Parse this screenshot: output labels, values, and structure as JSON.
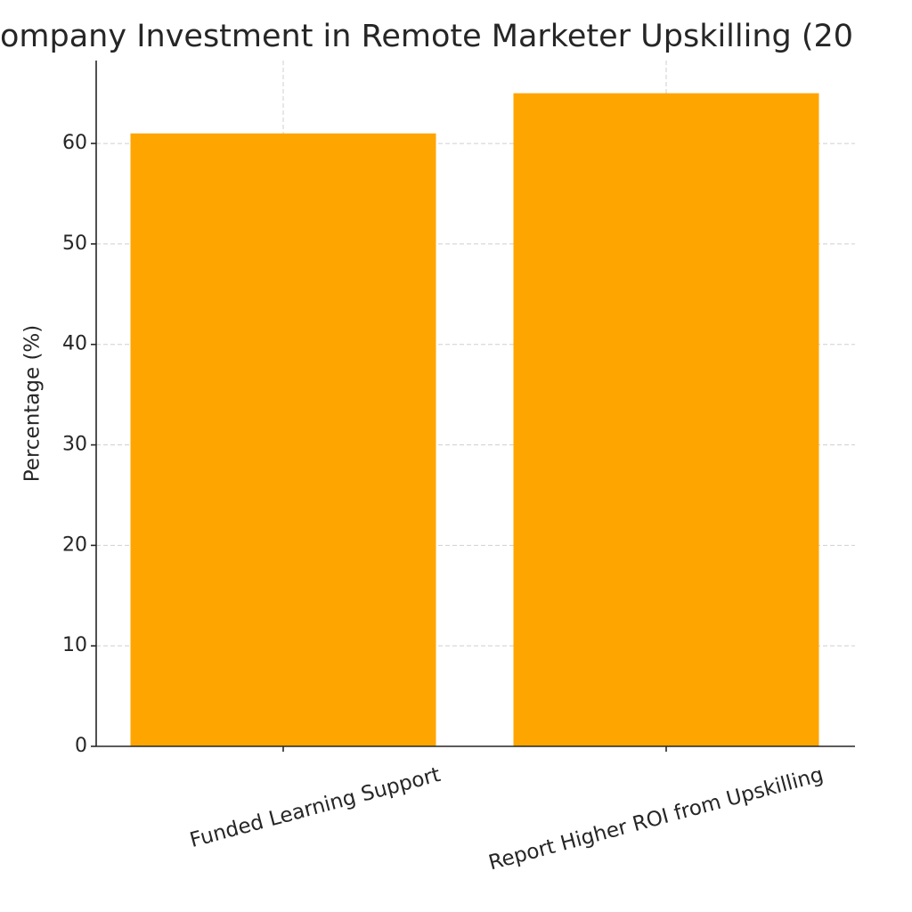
{
  "chart_data": {
    "type": "bar",
    "title": "ompany Investment in Remote Marketer Upskilling (20",
    "y_label": "Percentage (%)",
    "categories": [
      "Funded Learning Support",
      "Report Higher ROI from Upskilling"
    ],
    "values": [
      61,
      65
    ],
    "color": "#ffa500",
    "ylim": [
      0,
      68.25
    ],
    "yticks": [
      0,
      10,
      20,
      30,
      40,
      50,
      60
    ],
    "grid": true
  }
}
